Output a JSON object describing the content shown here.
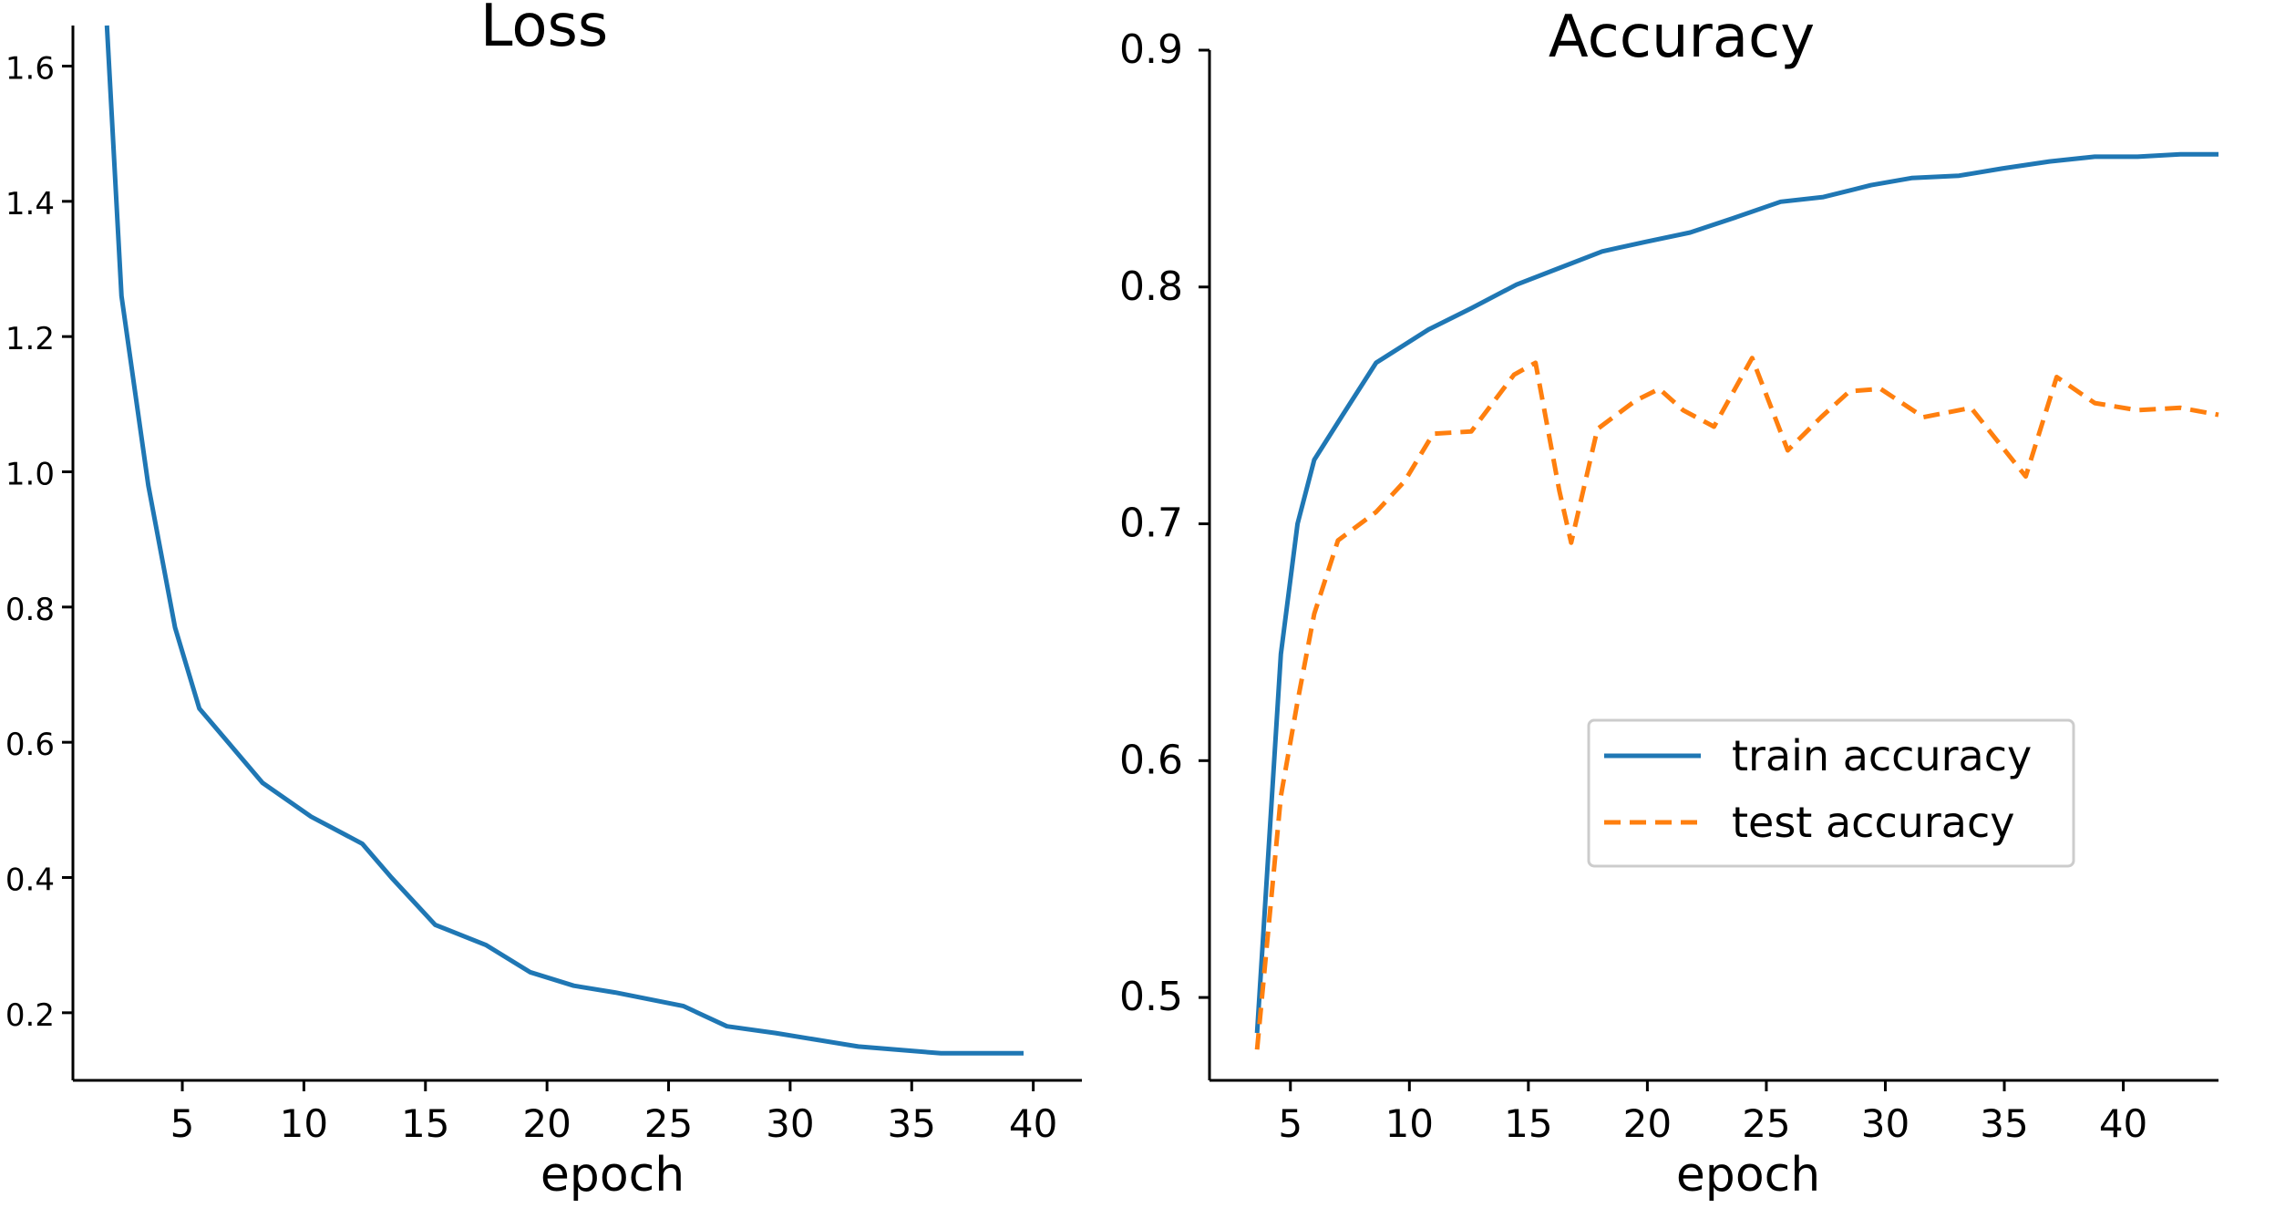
{
  "chart_data": [
    {
      "type": "line",
      "title": "Loss",
      "xlabel": "epoch",
      "ylabel": "",
      "xlim": [
        0.5,
        42.0
      ],
      "ylim": [
        0.1,
        1.66
      ],
      "xticks": [
        5,
        10,
        15,
        20,
        25,
        30,
        35,
        40
      ],
      "yticks": [
        0.2,
        0.4,
        0.6,
        0.8,
        1.0,
        1.2,
        1.4,
        1.6
      ],
      "xtick_labels": [
        "5",
        "10",
        "15",
        "20",
        "25",
        "30",
        "35",
        "40"
      ],
      "ytick_labels": [
        "0.2",
        "0.4",
        "0.6",
        "0.8",
        "1.0",
        "1.2",
        "1.4",
        "1.6"
      ],
      "grid": false,
      "series": [
        {
          "name": "",
          "color": "#1f77b4",
          "dash": "solid",
          "x": [
            1.9,
            2.5,
            3.6,
            4.7,
            5.7,
            8.3,
            10.3,
            12.4,
            13.6,
            15.4,
            17.5,
            19.3,
            21.1,
            22.8,
            25.6,
            27.4,
            29.4,
            32.8,
            36.2,
            39.6
          ],
          "y": [
            1.66,
            1.26,
            0.98,
            0.77,
            0.65,
            0.54,
            0.49,
            0.45,
            0.4,
            0.33,
            0.3,
            0.26,
            0.24,
            0.23,
            0.21,
            0.18,
            0.17,
            0.15,
            0.14,
            0.14
          ]
        }
      ]
    },
    {
      "type": "line",
      "title": "Accuracy",
      "xlabel": "epoch",
      "ylabel": "",
      "xlim": [
        1.6,
        44.0
      ],
      "ylim": [
        0.465,
        0.9
      ],
      "xticks": [
        5,
        10,
        15,
        20,
        25,
        30,
        35,
        40
      ],
      "yticks": [
        0.5,
        0.6,
        0.7,
        0.8,
        0.9
      ],
      "xtick_labels": [
        "5",
        "10",
        "15",
        "20",
        "25",
        "30",
        "35",
        "40"
      ],
      "ytick_labels": [
        "0.5",
        "0.6",
        "0.7",
        "0.8",
        "0.9"
      ],
      "grid": false,
      "legend_position": "center-right",
      "series": [
        {
          "name": "train accuracy",
          "color": "#1f77b4",
          "dash": "solid",
          "x": [
            3.6,
            4.6,
            5.3,
            6.0,
            7.2,
            8.6,
            10.8,
            12.6,
            14.5,
            16.3,
            18.1,
            19.9,
            21.8,
            23.6,
            25.6,
            27.4,
            29.4,
            31.1,
            33.1,
            34.9,
            36.9,
            38.8,
            40.6,
            42.4,
            44.0
          ],
          "y": [
            0.485,
            0.645,
            0.7,
            0.727,
            0.746,
            0.768,
            0.782,
            0.791,
            0.801,
            0.808,
            0.815,
            0.819,
            0.823,
            0.829,
            0.836,
            0.838,
            0.843,
            0.846,
            0.847,
            0.85,
            0.853,
            0.855,
            0.855,
            0.856,
            0.856
          ]
        },
        {
          "name": "test accuracy",
          "color": "#ff7f0e",
          "dash": "dashed",
          "x": [
            3.6,
            4.6,
            5.3,
            6.0,
            7.0,
            8.6,
            9.8,
            11.0,
            12.6,
            14.4,
            15.3,
            16.3,
            16.8,
            17.9,
            19.5,
            20.5,
            21.5,
            22.8,
            24.4,
            25.9,
            27.3,
            28.5,
            29.8,
            31.6,
            33.6,
            35.9,
            37.2,
            38.8,
            40.6,
            42.4,
            44.0
          ],
          "y": [
            0.478,
            0.585,
            0.625,
            0.662,
            0.693,
            0.705,
            0.718,
            0.738,
            0.739,
            0.763,
            0.768,
            0.714,
            0.692,
            0.74,
            0.752,
            0.757,
            0.748,
            0.741,
            0.77,
            0.731,
            0.745,
            0.756,
            0.757,
            0.745,
            0.749,
            0.72,
            0.762,
            0.751,
            0.748,
            0.749,
            0.746
          ]
        }
      ]
    }
  ]
}
